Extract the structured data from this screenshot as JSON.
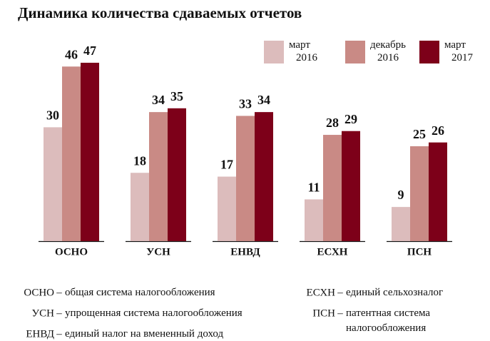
{
  "chart_data": {
    "type": "bar",
    "title": "Динамика количества сдаваемых отчетов",
    "categories": [
      "ОСНО",
      "УСН",
      "ЕНВД",
      "ЕСХН",
      "ПСН"
    ],
    "series": [
      {
        "name": "март 2016",
        "color": "#dcbcbc",
        "values": [
          30,
          18,
          17,
          11,
          9
        ]
      },
      {
        "name": "декабрь 2016",
        "color": "#c98a85",
        "values": [
          46,
          34,
          33,
          28,
          25
        ]
      },
      {
        "name": "март 2017",
        "color": "#7d0019",
        "values": [
          47,
          35,
          34,
          29,
          26
        ]
      }
    ],
    "legend": "top-right",
    "annotations": [
      {
        "term": "ОСНО",
        "text": "общая система налогообложения"
      },
      {
        "term": "УСН",
        "text": "упрощенная система налогообложения"
      },
      {
        "term": "ЕНВД",
        "text": "единый налог на вмененный доход"
      },
      {
        "term": "ЕСХН",
        "text": "единый сельхозналог"
      },
      {
        "term": "ПСН",
        "text": "патентная система налогообложения"
      }
    ]
  }
}
